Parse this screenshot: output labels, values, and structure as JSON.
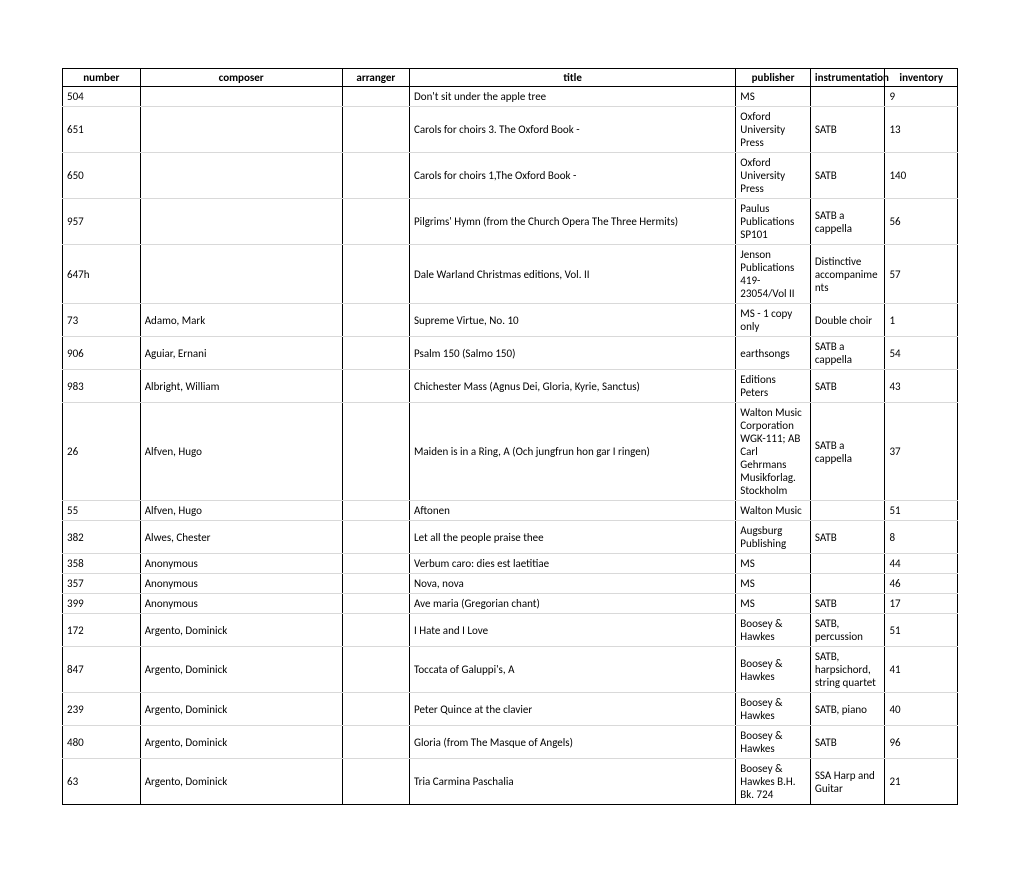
{
  "columns": [
    {
      "key": "number",
      "label": "number",
      "class": "col-number"
    },
    {
      "key": "composer",
      "label": "composer",
      "class": "col-composer"
    },
    {
      "key": "arranger",
      "label": "arranger",
      "class": "col-arranger"
    },
    {
      "key": "title",
      "label": "title",
      "class": "col-title"
    },
    {
      "key": "publisher",
      "label": "publisher",
      "class": "col-publisher"
    },
    {
      "key": "instrumentation",
      "label": "instrumentation",
      "class": "col-instrumentation"
    },
    {
      "key": "inventory",
      "label": "inventory",
      "class": "col-inventory"
    }
  ],
  "rows": [
    {
      "number": "504",
      "composer": "",
      "arranger": "",
      "title": "Don't sit under the apple tree",
      "publisher": "MS",
      "instrumentation": "",
      "inventory": "9"
    },
    {
      "number": "651",
      "composer": "",
      "arranger": "",
      "title": "Carols for choirs 3. The Oxford Book -",
      "publisher": "Oxford University Press",
      "instrumentation": "SATB",
      "inventory": "13"
    },
    {
      "number": "650",
      "composer": "",
      "arranger": "",
      "title": "Carols for choirs 1,The Oxford Book -",
      "publisher": "Oxford University Press",
      "instrumentation": "SATB",
      "inventory": "140"
    },
    {
      "number": "957",
      "composer": "",
      "arranger": "",
      "title": "Pilgrims' Hymn (from the Church Opera The Three Hermits)",
      "publisher": "Paulus Publications SP101",
      "instrumentation": "SATB a cappella",
      "inventory": "56"
    },
    {
      "number": "647h",
      "composer": "",
      "arranger": "",
      "title": "Dale Warland Christmas editions, Vol. II",
      "publisher": "Jenson Publications 419-23054/Vol II",
      "instrumentation": "Distinctive accompaniments",
      "inventory": "57"
    },
    {
      "number": "73",
      "composer": "Adamo, Mark",
      "arranger": "",
      "title": "Supreme Virtue, No. 10",
      "publisher": "MS - 1 copy only",
      "instrumentation": "Double choir",
      "inventory": "1"
    },
    {
      "number": "906",
      "composer": "Aguiar, Ernani",
      "arranger": "",
      "title": "Psalm 150 (Salmo 150)",
      "publisher": "earthsongs",
      "instrumentation": "SATB a cappella",
      "inventory": "54"
    },
    {
      "number": "983",
      "composer": "Albright, William",
      "arranger": "",
      "title": "Chichester Mass (Agnus Dei, Gloria, Kyrie, Sanctus)",
      "publisher": "Editions Peters",
      "instrumentation": "SATB",
      "inventory": "43"
    },
    {
      "number": "26",
      "composer": "Alfven, Hugo",
      "arranger": "",
      "title": "Maiden is in a Ring, A (Och jungfrun hon gar I ringen)",
      "publisher": "Walton Music Corporation WGK-111; AB Carl Gehrmans Musikforlag. Stockholm",
      "instrumentation": "SATB a cappella",
      "inventory": "37"
    },
    {
      "number": "55",
      "composer": "Alfven, Hugo",
      "arranger": "",
      "title": "Aftonen",
      "publisher": "Walton Music",
      "instrumentation": "",
      "inventory": "51"
    },
    {
      "number": "382",
      "composer": "Alwes, Chester",
      "arranger": "",
      "title": "Let all the people praise thee",
      "publisher": "Augsburg Publishing",
      "instrumentation": "SATB",
      "inventory": "8"
    },
    {
      "number": "358",
      "composer": "Anonymous",
      "arranger": "",
      "title": "Verbum caro: dies est laetitiae",
      "publisher": "MS",
      "instrumentation": "",
      "inventory": "44"
    },
    {
      "number": "357",
      "composer": "Anonymous",
      "arranger": "",
      "title": "Nova, nova",
      "publisher": "MS",
      "instrumentation": "",
      "inventory": "46"
    },
    {
      "number": "399",
      "composer": "Anonymous",
      "arranger": "",
      "title": "Ave maria (Gregorian chant)",
      "publisher": "MS",
      "instrumentation": "SATB",
      "inventory": "17"
    },
    {
      "number": "172",
      "composer": "Argento, Dominick",
      "arranger": "",
      "title": "I Hate and I Love",
      "publisher": "Boosey & Hawkes",
      "instrumentation": "SATB, percussion",
      "inventory": "51"
    },
    {
      "number": "847",
      "composer": "Argento, Dominick",
      "arranger": "",
      "title": "Toccata of Galuppi's, A",
      "publisher": "Boosey & Hawkes",
      "instrumentation": "SATB, harpsichord, string quartet",
      "inventory": "41"
    },
    {
      "number": "239",
      "composer": "Argento, Dominick",
      "arranger": "",
      "title": "Peter Quince at the clavier",
      "publisher": "Boosey & Hawkes",
      "instrumentation": "SATB, piano",
      "inventory": "40"
    },
    {
      "number": "480",
      "composer": "Argento, Dominick",
      "arranger": "",
      "title": "Gloria (from The Masque of Angels)",
      "publisher": "Boosey & Hawkes",
      "instrumentation": "SATB",
      "inventory": "96"
    },
    {
      "number": "63",
      "composer": "Argento, Dominick",
      "arranger": "",
      "title": "Tria Carmina Paschalia",
      "publisher": "Boosey & Hawkes B.H. Bk. 724",
      "instrumentation": "SSA Harp and Guitar",
      "inventory": "21"
    }
  ],
  "styles": {
    "background_color": "#ffffff",
    "border_color": "#000000",
    "row_separator_color": "#d9d9d9",
    "font_family": "Calibri, Arial, sans-serif",
    "font_size": 11,
    "text_color": "#000000"
  }
}
